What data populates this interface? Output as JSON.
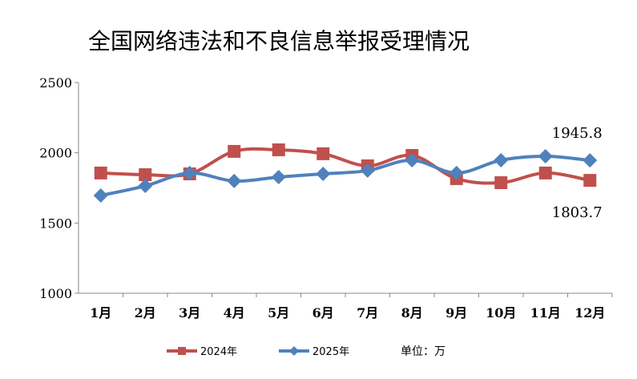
{
  "chart_data": {
    "type": "line",
    "title": "全国网络违法和不良信息举报受理情况",
    "categories": [
      "1月",
      "2月",
      "3月",
      "4月",
      "5月",
      "6月",
      "7月",
      "8月",
      "9月",
      "10月",
      "11月",
      "12月"
    ],
    "ylim": [
      1000,
      2500
    ],
    "yticks": [
      1000,
      1500,
      2000,
      2500
    ],
    "grid": false,
    "legend": "bottom",
    "unit_label": "单位：万",
    "series": [
      {
        "name": "2024年",
        "color": "#c0504d",
        "marker": "square",
        "values": [
          1856,
          1844,
          1850,
          2010,
          2021,
          1993,
          1907,
          1981,
          1816,
          1787,
          1856,
          1803.7
        ]
      },
      {
        "name": "2025年",
        "color": "#4f81bd",
        "marker": "diamond",
        "values": [
          1696,
          1764,
          1856,
          1799,
          1827,
          1850,
          1873,
          1947,
          1856,
          1947,
          1975,
          1945.8
        ]
      }
    ],
    "annotations": [
      {
        "series": "2025年",
        "category": "12月",
        "text": "1945.8"
      },
      {
        "series": "2024年",
        "category": "12月",
        "text": "1803.7"
      }
    ]
  }
}
